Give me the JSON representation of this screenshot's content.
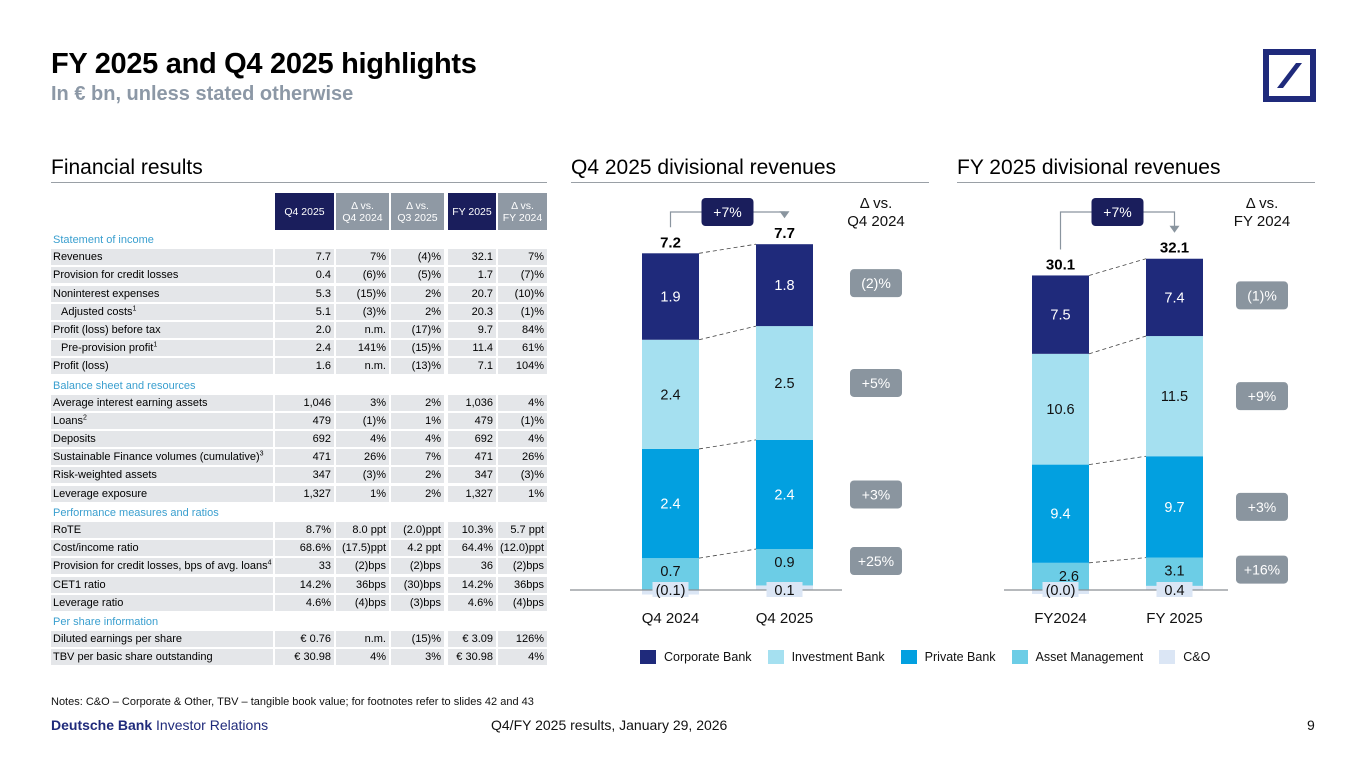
{
  "header": {
    "title": "FY 2025 and Q4 2025 highlights",
    "subtitle": "In € bn, unless stated otherwise"
  },
  "logo": {
    "name": "deutsche-bank-logo",
    "color": "#1f2a7b"
  },
  "financial_results": {
    "title": "Financial results",
    "columns": [
      "Q4 2025",
      "Δ vs.\nQ4 2024",
      "Δ vs.\nQ3 2025",
      "FY 2025",
      "Δ vs.\nFY 2024"
    ],
    "column_labels": {
      "c1": "Q4 2025",
      "c2a": "Δ vs.",
      "c2b": "Q4 2024",
      "c3a": "Δ vs.",
      "c3b": "Q3 2025",
      "c4": "FY 2025",
      "c5a": "Δ vs.",
      "c5b": "FY 2024"
    },
    "sections": [
      {
        "title": "Statement of income",
        "rows": [
          {
            "label": "Revenues",
            "sup": "",
            "indent": false,
            "values": [
              "7.7",
              "7%",
              "(4)%",
              "32.1",
              "7%"
            ]
          },
          {
            "label": "Provision for credit losses",
            "sup": "",
            "indent": false,
            "values": [
              "0.4",
              "(6)%",
              "(5)%",
              "1.7",
              "(7)%"
            ]
          },
          {
            "label": "Noninterest expenses",
            "sup": "",
            "indent": false,
            "values": [
              "5.3",
              "(15)%",
              "2%",
              "20.7",
              "(10)%"
            ]
          },
          {
            "label": "Adjusted costs",
            "sup": "1",
            "indent": true,
            "values": [
              "5.1",
              "(3)%",
              "2%",
              "20.3",
              "(1)%"
            ]
          },
          {
            "label": "Profit (loss) before tax",
            "sup": "",
            "indent": false,
            "values": [
              "2.0",
              "n.m.",
              "(17)%",
              "9.7",
              "84%"
            ]
          },
          {
            "label": "Pre-provision profit",
            "sup": "1",
            "indent": true,
            "values": [
              "2.4",
              "141%",
              "(15)%",
              "11.4",
              "61%"
            ]
          },
          {
            "label": "Profit (loss)",
            "sup": "",
            "indent": false,
            "values": [
              "1.6",
              "n.m.",
              "(13)%",
              "7.1",
              "104%"
            ]
          }
        ]
      },
      {
        "title": "Balance sheet and resources",
        "rows": [
          {
            "label": "Average interest earning assets",
            "sup": "",
            "indent": false,
            "values": [
              "1,046",
              "3%",
              "2%",
              "1,036",
              "4%"
            ]
          },
          {
            "label": "Loans",
            "sup": "2",
            "indent": false,
            "values": [
              "479",
              "(1)%",
              "1%",
              "479",
              "(1)%"
            ]
          },
          {
            "label": "Deposits",
            "sup": "",
            "indent": false,
            "values": [
              "692",
              "4%",
              "4%",
              "692",
              "4%"
            ]
          },
          {
            "label": "Sustainable Finance volumes (cumulative)",
            "sup": "3",
            "indent": false,
            "values": [
              "471",
              "26%",
              "7%",
              "471",
              "26%"
            ]
          },
          {
            "label": "Risk-weighted assets",
            "sup": "",
            "indent": false,
            "values": [
              "347",
              "(3)%",
              "2%",
              "347",
              "(3)%"
            ]
          },
          {
            "label": "Leverage exposure",
            "sup": "",
            "indent": false,
            "values": [
              "1,327",
              "1%",
              "2%",
              "1,327",
              "1%"
            ]
          }
        ]
      },
      {
        "title": "Performance measures and ratios",
        "rows": [
          {
            "label": "RoTE",
            "sup": "",
            "indent": false,
            "values": [
              "8.7%",
              "8.0 ppt",
              "(2.0)ppt",
              "10.3%",
              "5.7 ppt"
            ]
          },
          {
            "label": "Cost/income ratio",
            "sup": "",
            "indent": false,
            "values": [
              "68.6%",
              "(17.5)ppt",
              "4.2 ppt",
              "64.4%",
              "(12.0)ppt"
            ]
          },
          {
            "label": "Provision for credit losses, bps of avg. loans",
            "sup": "4",
            "indent": false,
            "values": [
              "33",
              "(2)bps",
              "(2)bps",
              "36",
              "(2)bps"
            ]
          },
          {
            "label": "CET1 ratio",
            "sup": "",
            "indent": false,
            "values": [
              "14.2%",
              "36bps",
              "(30)bps",
              "14.2%",
              "36bps"
            ]
          },
          {
            "label": "Leverage ratio",
            "sup": "",
            "indent": false,
            "values": [
              "4.6%",
              "(4)bps",
              "(3)bps",
              "4.6%",
              "(4)bps"
            ]
          }
        ]
      },
      {
        "title": "Per share information",
        "rows": [
          {
            "label": "Diluted earnings per share",
            "sup": "",
            "indent": false,
            "values": [
              "€ 0.76",
              "n.m.",
              "(15)%",
              "€ 3.09",
              "126%"
            ]
          },
          {
            "label": "TBV per basic share outstanding",
            "sup": "",
            "indent": false,
            "values": [
              "€ 30.98",
              "4%",
              "3%",
              "€ 30.98",
              "4%"
            ]
          }
        ]
      }
    ]
  },
  "chart_data": [
    {
      "type": "bar",
      "stacked": true,
      "title": "Q4 2025 divisional revenues",
      "categories": [
        "Q4 2024",
        "Q4 2025"
      ],
      "totals": [
        "7.2",
        "7.7"
      ],
      "growth_label": "+7%",
      "delta_header": [
        "Δ vs.",
        "Q4 2024"
      ],
      "series": [
        {
          "name": "C&O",
          "values": [
            -0.1,
            0.1
          ],
          "labels": [
            "(0.1)",
            "0.1"
          ],
          "delta": ""
        },
        {
          "name": "Asset Management",
          "values": [
            0.7,
            0.9
          ],
          "labels": [
            "0.7",
            "0.9"
          ],
          "delta": "+25%"
        },
        {
          "name": "Private Bank",
          "values": [
            2.4,
            2.4
          ],
          "labels": [
            "2.4",
            "2.4"
          ],
          "delta": "+3%"
        },
        {
          "name": "Investment Bank",
          "values": [
            2.4,
            2.5
          ],
          "labels": [
            "2.4",
            "2.5"
          ],
          "delta": "+5%"
        },
        {
          "name": "Corporate Bank",
          "values": [
            1.9,
            1.8
          ],
          "labels": [
            "1.9",
            "1.8"
          ],
          "delta": "(2)%"
        }
      ]
    },
    {
      "type": "bar",
      "stacked": true,
      "title": "FY 2025 divisional revenues",
      "categories": [
        "FY2024",
        "FY 2025"
      ],
      "totals": [
        "30.1",
        "32.1"
      ],
      "growth_label": "+7%",
      "delta_header": [
        "Δ vs.",
        "FY 2024"
      ],
      "series": [
        {
          "name": "C&O",
          "values": [
            0.0,
            0.4
          ],
          "labels": [
            "(0.0)",
            "0.4"
          ],
          "delta": ""
        },
        {
          "name": "Asset Management",
          "values": [
            2.6,
            3.1
          ],
          "labels": [
            "2.6",
            "3.1"
          ],
          "delta": "+16%"
        },
        {
          "name": "Private Bank",
          "values": [
            9.4,
            9.7
          ],
          "labels": [
            "9.4",
            "9.7"
          ],
          "delta": "+3%"
        },
        {
          "name": "Investment Bank",
          "values": [
            10.6,
            11.5
          ],
          "labels": [
            "10.6",
            "11.5"
          ],
          "delta": "+9%"
        },
        {
          "name": "Corporate Bank",
          "values": [
            7.5,
            7.4
          ],
          "labels": [
            "7.5",
            "7.4"
          ],
          "delta": "(1)%"
        }
      ]
    }
  ],
  "legend": [
    {
      "name": "Corporate Bank",
      "color": "#1f2a7b"
    },
    {
      "name": "Investment Bank",
      "color": "#a5e0f0"
    },
    {
      "name": "Private Bank",
      "color": "#02a0e0"
    },
    {
      "name": "Asset Management",
      "color": "#6ccde6"
    },
    {
      "name": "C&O",
      "color": "#dbe6f5"
    }
  ],
  "colors": {
    "Corporate Bank": "#1f2a7b",
    "Investment Bank": "#a5e0f0",
    "Private Bank": "#02a0e0",
    "Asset Management": "#6ccde6",
    "C&O": "#dbe6f5",
    "delta_badge": "#8a959f",
    "growth_badge": "#1a1e5c"
  },
  "footer": {
    "notes": "Notes: C&O – Corporate & Other, TBV – tangible book value; for footnotes refer to slides 42 and 43",
    "brand_bold": "Deutsche Bank",
    "brand_rest": " Investor Relations",
    "center": "Q4/FY 2025 results, January 29, 2026",
    "page": "9"
  }
}
